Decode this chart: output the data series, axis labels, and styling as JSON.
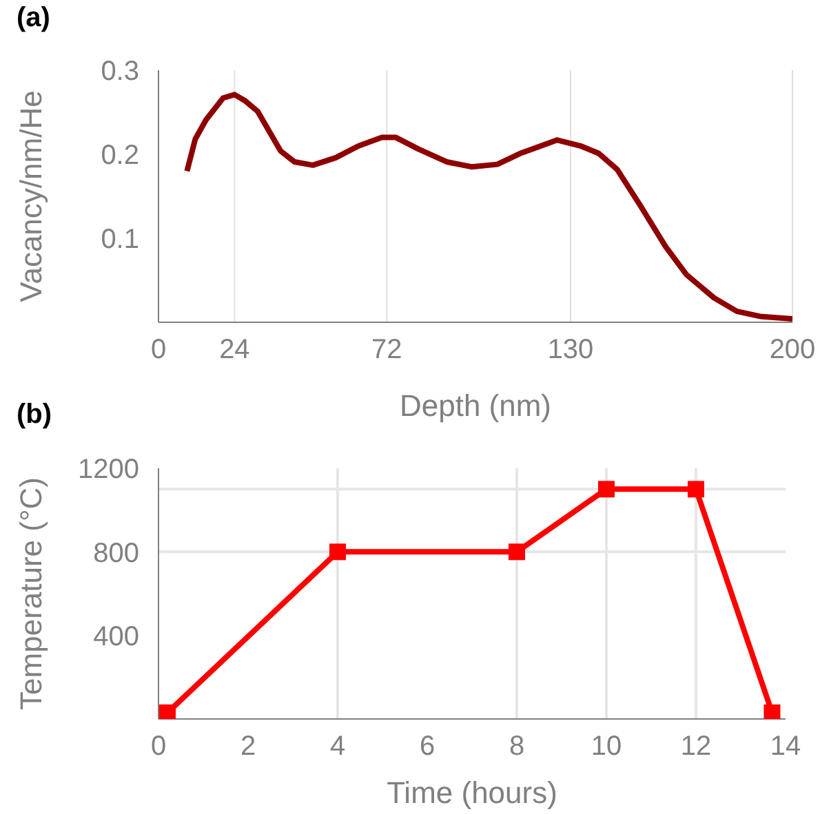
{
  "chart_data": [
    {
      "type": "line",
      "title": "(a)",
      "xlabel": "Depth (nm)",
      "ylabel": "Vacancy/nm/He",
      "color": "#8e0000",
      "marker": "none",
      "line_style": "solid",
      "grid": "x",
      "legend": false,
      "x": [
        9.0,
        11.6,
        15.0,
        20.4,
        24.0,
        27.2,
        31.3,
        38.5,
        42.9,
        48.7,
        56.0,
        63.2,
        70.5,
        74.9,
        82.1,
        90.9,
        98.9,
        106.9,
        114.1,
        125.8,
        133.1,
        138.9,
        144.7,
        152.0,
        160.0,
        166.5,
        175.3,
        182.5,
        189.8,
        200
      ],
      "values": [
        0.18,
        0.218,
        0.241,
        0.267,
        0.271,
        0.264,
        0.251,
        0.204,
        0.191,
        0.187,
        0.196,
        0.21,
        0.22,
        0.22,
        0.206,
        0.191,
        0.185,
        0.188,
        0.201,
        0.217,
        0.21,
        0.201,
        0.182,
        0.139,
        0.09,
        0.057,
        0.029,
        0.013,
        0.007,
        0.004
      ],
      "xlim": [
        0,
        200
      ],
      "xticks": [
        0,
        24,
        72,
        130,
        200
      ],
      "ylim": [
        0,
        0.3
      ],
      "yticks": [
        0.1,
        0.2,
        0.3
      ]
    },
    {
      "type": "line",
      "title": "(b)",
      "xlabel": "Time (hours)",
      "ylabel": "Temperature (°C)",
      "color": "#ff0000",
      "marker": "square",
      "line_style": "solid",
      "grid": false,
      "legend": false,
      "x": [
        0.2,
        4,
        8,
        10,
        12,
        13.7
      ],
      "values": [
        30,
        800,
        800,
        1100,
        1100,
        30
      ],
      "xlim": [
        0,
        14
      ],
      "xticks": [
        0,
        2,
        4,
        6,
        8,
        10,
        12,
        14
      ],
      "ylim": [
        0,
        1200
      ],
      "yticks": [
        400,
        800,
        1200
      ],
      "ref_lines": [
        {
          "axis": "x",
          "value": 4,
          "color": "#e6e6e6"
        },
        {
          "axis": "x",
          "value": 8,
          "color": "#e6e6e6"
        },
        {
          "axis": "x",
          "value": 10,
          "color": "#e6e6e6"
        },
        {
          "axis": "x",
          "value": 12,
          "color": "#e6e6e6"
        },
        {
          "axis": "y",
          "value": 800,
          "color": "#e6e6e6"
        },
        {
          "axis": "y",
          "value": 1100,
          "color": "#e6e6e6"
        }
      ]
    }
  ]
}
